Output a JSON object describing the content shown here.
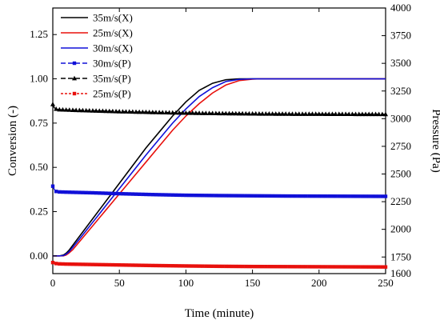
{
  "chart_data": {
    "type": "line",
    "xlabel": "Time (minute)",
    "ylabel_left": "Conversion (-)",
    "ylabel_right": "Pressure (Pa)",
    "xlim": [
      0,
      250
    ],
    "ylim_left": [
      -0.1,
      1.4
    ],
    "ylim_right": [
      1600,
      4000
    ],
    "x_ticks": [
      0,
      50,
      100,
      150,
      200,
      250
    ],
    "y_ticks_left": [
      0.0,
      0.25,
      0.5,
      0.75,
      1.0,
      1.25
    ],
    "y_ticks_right": [
      1750,
      2000,
      2250,
      2500,
      2750,
      3000,
      3250,
      3500,
      3750,
      4000
    ],
    "y_ticks_right_extra": [
      1600
    ],
    "legend_position": "top-left",
    "series": [
      {
        "name": "35m/s(X)",
        "axis": "left",
        "color": "#000000",
        "style": "solid",
        "marker": "none",
        "x": [
          0,
          5,
          8,
          10,
          12,
          15,
          20,
          30,
          40,
          50,
          60,
          70,
          80,
          90,
          100,
          110,
          120,
          130,
          140,
          145,
          150,
          155,
          160,
          170,
          200,
          250
        ],
        "y": [
          0.0,
          0.0,
          0.005,
          0.015,
          0.03,
          0.06,
          0.11,
          0.21,
          0.31,
          0.41,
          0.51,
          0.61,
          0.7,
          0.79,
          0.87,
          0.935,
          0.975,
          0.995,
          1.0,
          1.0,
          1.0,
          1.0,
          1.0,
          1.0,
          1.0,
          1.0
        ]
      },
      {
        "name": "25m/s(X)",
        "axis": "left",
        "color": "#e8100c",
        "style": "solid",
        "marker": "none",
        "x": [
          0,
          5,
          8,
          10,
          12,
          15,
          20,
          30,
          40,
          50,
          60,
          70,
          80,
          90,
          100,
          110,
          120,
          130,
          140,
          150,
          155,
          160,
          165,
          170,
          200,
          250
        ],
        "y": [
          0.0,
          0.0,
          0.0,
          0.005,
          0.015,
          0.035,
          0.08,
          0.17,
          0.26,
          0.35,
          0.44,
          0.53,
          0.62,
          0.71,
          0.79,
          0.86,
          0.92,
          0.965,
          0.99,
          0.998,
          1.0,
          1.0,
          1.0,
          1.0,
          1.0,
          1.0
        ]
      },
      {
        "name": "30m/s(X)",
        "axis": "left",
        "color": "#1010d8",
        "style": "solid",
        "marker": "none",
        "x": [
          0,
          5,
          8,
          10,
          12,
          15,
          20,
          30,
          40,
          50,
          60,
          70,
          80,
          90,
          100,
          110,
          120,
          130,
          140,
          150,
          155,
          160,
          170,
          200,
          250
        ],
        "y": [
          0.0,
          0.0,
          0.002,
          0.01,
          0.022,
          0.048,
          0.095,
          0.19,
          0.285,
          0.38,
          0.475,
          0.57,
          0.66,
          0.75,
          0.83,
          0.9,
          0.95,
          0.985,
          0.997,
          1.0,
          1.0,
          1.0,
          1.0,
          1.0,
          1.0
        ]
      },
      {
        "name": "30m/s(P)",
        "axis": "right",
        "color": "#1010d8",
        "style": "dashed",
        "marker": "square",
        "x": [
          0,
          1,
          2,
          3,
          5,
          10,
          20,
          30,
          50,
          75,
          100,
          125,
          150,
          175,
          200,
          225,
          250
        ],
        "y": [
          2390,
          2365,
          2345,
          2340,
          2338,
          2336,
          2333,
          2330,
          2322,
          2314,
          2308,
          2305,
          2303,
          2301,
          2300,
          2299,
          2298
        ]
      },
      {
        "name": "35m/s(P)",
        "axis": "right",
        "color": "#000000",
        "style": "dashed",
        "marker": "triangle",
        "x": [
          0,
          1,
          2,
          3,
          5,
          10,
          20,
          30,
          50,
          75,
          100,
          125,
          150,
          175,
          200,
          225,
          250
        ],
        "y": [
          3130,
          3100,
          3090,
          3085,
          3082,
          3080,
          3076,
          3072,
          3065,
          3058,
          3052,
          3048,
          3045,
          3043,
          3042,
          3041,
          3040
        ]
      },
      {
        "name": "25m/s(P)",
        "axis": "right",
        "color": "#e8100c",
        "style": "dotted",
        "marker": "square",
        "x": [
          0,
          1,
          2,
          3,
          5,
          10,
          20,
          30,
          50,
          75,
          100,
          125,
          150,
          175,
          200,
          225,
          250
        ],
        "y": [
          1700,
          1695,
          1692,
          1690,
          1688,
          1686,
          1684,
          1682,
          1678,
          1673,
          1669,
          1666,
          1664,
          1663,
          1662,
          1661,
          1660
        ]
      }
    ]
  }
}
